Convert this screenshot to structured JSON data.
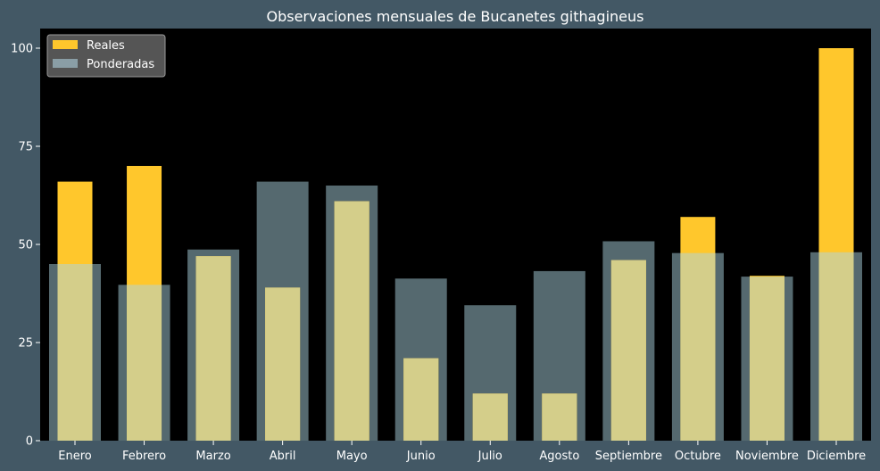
{
  "chart_data": {
    "type": "bar",
    "title": "Observaciones mensuales de Bucanetes githagineus",
    "xlabel": "",
    "ylabel": "",
    "categories": [
      "Enero",
      "Febrero",
      "Marzo",
      "Abril",
      "Mayo",
      "Junio",
      "Julio",
      "Agosto",
      "Septiembre",
      "Octubre",
      "Noviembre",
      "Diciembre"
    ],
    "series": [
      {
        "name": "Ponderadas",
        "color": "#8a9ea6",
        "values": [
          45,
          39.7,
          48.7,
          66,
          65,
          41.3,
          34.5,
          43.2,
          50.8,
          47.8,
          41.8,
          48
        ]
      },
      {
        "name": "Reales",
        "color": "#ffc72c",
        "values": [
          66,
          70,
          47,
          39,
          61,
          21,
          12,
          12,
          46,
          57,
          42,
          100
        ]
      }
    ],
    "ylim": [
      0,
      105
    ],
    "yticks": [
      0,
      25,
      50,
      75,
      100
    ],
    "grid": false,
    "legend_position": "top-left",
    "colors": {
      "background": "#435865",
      "plot_area": "#000000",
      "text": "#ffffff",
      "overlap": "#d4ce8a"
    }
  }
}
